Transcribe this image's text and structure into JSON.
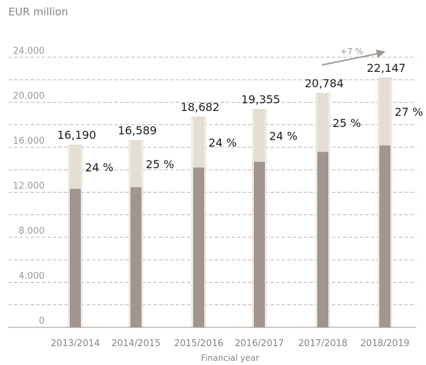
{
  "chart_data": {
    "type": "bar",
    "stacked": true,
    "unit_label": "EUR million",
    "xlabel": "Financial year",
    "ylabel": "",
    "ylim": [
      0,
      26000
    ],
    "yticks": [
      0,
      4000,
      8000,
      12000,
      16000,
      20000,
      24000
    ],
    "ytick_labels": [
      "0",
      "4.000",
      "8.000",
      "12.000",
      "16.000",
      "20.000",
      "24.000"
    ],
    "grid": true,
    "categories": [
      "2013/2014",
      "2014/2015",
      "2015/2016",
      "2016/2017",
      "2017/2018",
      "2018/2019"
    ],
    "totals": [
      16190,
      16589,
      18682,
      19355,
      20784,
      22147
    ],
    "total_labels": [
      "16,190",
      "16,589",
      "18,682",
      "19,355",
      "20,784",
      "22,147"
    ],
    "upper_share_percent": [
      24,
      25,
      24,
      24,
      25,
      27
    ],
    "share_labels": [
      "24 %",
      "25 %",
      "24 %",
      "24 %",
      "25 %",
      "27 %"
    ],
    "annotation": "+7 %",
    "colors": {
      "lower": "#a0958f",
      "upper": "#e3ddd3",
      "grid": "#b9b3ae",
      "axis": "#a0958f",
      "arrow": "#a0958f"
    }
  }
}
